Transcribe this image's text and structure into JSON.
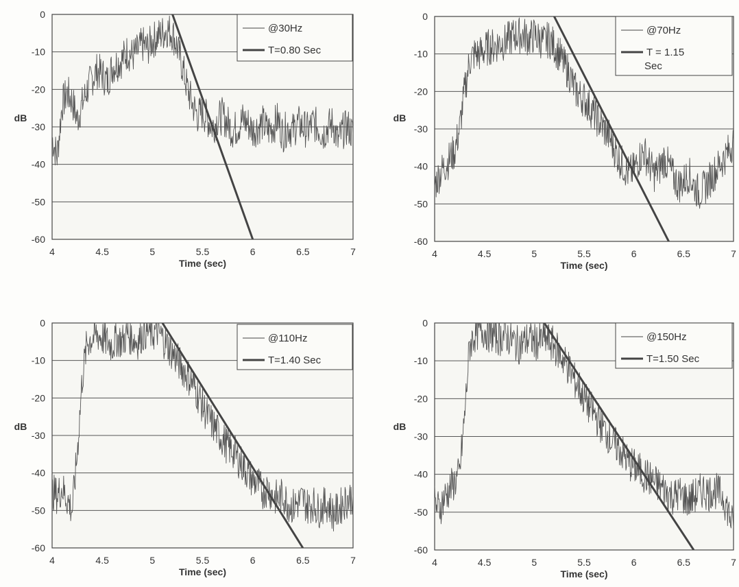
{
  "chart_data": [
    {
      "type": "line",
      "title": "",
      "xlabel": "Time (sec)",
      "ylabel": "dB",
      "xlim": [
        4,
        7
      ],
      "ylim": [
        -60,
        0
      ],
      "xticks": [
        "4",
        "4.5",
        "5",
        "5.5",
        "6",
        "6.5",
        "7"
      ],
      "yticks": [
        "0",
        "-10",
        "-20",
        "-30",
        "-40",
        "-50",
        "-60"
      ],
      "grid": "horizontal",
      "legend_position": "top-right",
      "series": [
        {
          "name": "@30Hz",
          "style": "thin",
          "points": [
            [
              4.0,
              -33
            ],
            [
              4.05,
              -38
            ],
            [
              4.1,
              -24
            ],
            [
              4.15,
              -21
            ],
            [
              4.2,
              -23
            ],
            [
              4.25,
              -28
            ],
            [
              4.3,
              -24
            ],
            [
              4.35,
              -20
            ],
            [
              4.4,
              -17
            ],
            [
              4.45,
              -15
            ],
            [
              4.5,
              -16
            ],
            [
              4.55,
              -18
            ],
            [
              4.6,
              -14
            ],
            [
              4.65,
              -13
            ],
            [
              4.7,
              -12
            ],
            [
              4.75,
              -10
            ],
            [
              4.8,
              -11
            ],
            [
              4.85,
              -10
            ],
            [
              4.9,
              -8
            ],
            [
              4.95,
              -9
            ],
            [
              5.0,
              -7
            ],
            [
              5.05,
              -6
            ],
            [
              5.1,
              -5
            ],
            [
              5.15,
              -4
            ],
            [
              5.2,
              -5
            ],
            [
              5.25,
              -9
            ],
            [
              5.3,
              -14
            ],
            [
              5.35,
              -20
            ],
            [
              5.4,
              -24
            ],
            [
              5.45,
              -27
            ],
            [
              5.5,
              -26
            ],
            [
              5.55,
              -28
            ],
            [
              5.6,
              -30
            ],
            [
              5.65,
              -28
            ],
            [
              5.7,
              -27
            ],
            [
              5.75,
              -29
            ],
            [
              5.8,
              -31
            ],
            [
              5.85,
              -30
            ],
            [
              5.9,
              -28
            ],
            [
              5.95,
              -29
            ],
            [
              6.0,
              -31
            ],
            [
              6.05,
              -30
            ],
            [
              6.1,
              -29
            ],
            [
              6.15,
              -31
            ],
            [
              6.2,
              -30
            ],
            [
              6.25,
              -28
            ],
            [
              6.3,
              -32
            ],
            [
              6.35,
              -30
            ],
            [
              6.4,
              -31
            ],
            [
              6.45,
              -29
            ],
            [
              6.5,
              -30
            ],
            [
              6.55,
              -31
            ],
            [
              6.6,
              -29
            ],
            [
              6.65,
              -30
            ],
            [
              6.7,
              -32
            ],
            [
              6.75,
              -30
            ],
            [
              6.8,
              -29
            ],
            [
              6.85,
              -34
            ],
            [
              6.9,
              -31
            ],
            [
              6.95,
              -30
            ],
            [
              7.0,
              -32
            ]
          ]
        },
        {
          "name": "T=0.80 Sec",
          "style": "thick",
          "points": [
            [
              5.2,
              0
            ],
            [
              6.0,
              -60
            ]
          ]
        }
      ]
    },
    {
      "type": "line",
      "title": "",
      "xlabel": "Time (sec)",
      "ylabel": "dB",
      "xlim": [
        4,
        7
      ],
      "ylim": [
        -60,
        0
      ],
      "xticks": [
        "4",
        "4.5",
        "5",
        "5.5",
        "6",
        "6.5",
        "7"
      ],
      "yticks": [
        "0",
        "-10",
        "-20",
        "-30",
        "-40",
        "-50",
        "-60"
      ],
      "grid": "horizontal",
      "legend_position": "top-right",
      "series": [
        {
          "name": "@70Hz",
          "style": "thin",
          "points": [
            [
              4.0,
              -45
            ],
            [
              4.05,
              -42
            ],
            [
              4.1,
              -40
            ],
            [
              4.15,
              -38
            ],
            [
              4.2,
              -36
            ],
            [
              4.25,
              -30
            ],
            [
              4.3,
              -20
            ],
            [
              4.35,
              -12
            ],
            [
              4.4,
              -10
            ],
            [
              4.45,
              -10
            ],
            [
              4.5,
              -9
            ],
            [
              4.55,
              -8
            ],
            [
              4.6,
              -8
            ],
            [
              4.65,
              -7
            ],
            [
              4.7,
              -7
            ],
            [
              4.75,
              -6
            ],
            [
              4.8,
              -5
            ],
            [
              4.85,
              -5
            ],
            [
              4.9,
              -5
            ],
            [
              4.95,
              -6
            ],
            [
              5.0,
              -5
            ],
            [
              5.05,
              -6
            ],
            [
              5.1,
              -7
            ],
            [
              5.15,
              -6
            ],
            [
              5.2,
              -8
            ],
            [
              5.25,
              -10
            ],
            [
              5.3,
              -13
            ],
            [
              5.35,
              -15
            ],
            [
              5.4,
              -19
            ],
            [
              5.45,
              -21
            ],
            [
              5.5,
              -22
            ],
            [
              5.55,
              -24
            ],
            [
              5.6,
              -26
            ],
            [
              5.65,
              -28
            ],
            [
              5.7,
              -30
            ],
            [
              5.75,
              -32
            ],
            [
              5.8,
              -35
            ],
            [
              5.85,
              -38
            ],
            [
              5.9,
              -40
            ],
            [
              5.95,
              -42
            ],
            [
              6.0,
              -41
            ],
            [
              6.05,
              -38
            ],
            [
              6.1,
              -36
            ],
            [
              6.15,
              -39
            ],
            [
              6.2,
              -42
            ],
            [
              6.25,
              -41
            ],
            [
              6.3,
              -38
            ],
            [
              6.35,
              -40
            ],
            [
              6.4,
              -43
            ],
            [
              6.45,
              -45
            ],
            [
              6.5,
              -44
            ],
            [
              6.55,
              -42
            ],
            [
              6.6,
              -45
            ],
            [
              6.65,
              -47
            ],
            [
              6.7,
              -46
            ],
            [
              6.75,
              -44
            ],
            [
              6.8,
              -42
            ],
            [
              6.85,
              -40
            ],
            [
              6.9,
              -38
            ],
            [
              6.95,
              -36
            ],
            [
              7.0,
              -33
            ]
          ]
        },
        {
          "name": "T = 1.15 Sec",
          "style": "thick",
          "points": [
            [
              5.2,
              0
            ],
            [
              6.35,
              -60
            ]
          ]
        }
      ]
    },
    {
      "type": "line",
      "title": "",
      "xlabel": "Time (sec)",
      "ylabel": "dB",
      "xlim": [
        4,
        7
      ],
      "ylim": [
        -60,
        0
      ],
      "xticks": [
        "4",
        "4.5",
        "5",
        "5.5",
        "6",
        "6.5",
        "7"
      ],
      "yticks": [
        "0",
        "-10",
        "-20",
        "-30",
        "-40",
        "-50",
        "-60"
      ],
      "grid": "horizontal",
      "legend_position": "top-right",
      "series": [
        {
          "name": "@110Hz",
          "style": "thin",
          "points": [
            [
              4.0,
              -45
            ],
            [
              4.05,
              -46
            ],
            [
              4.1,
              -44
            ],
            [
              4.15,
              -47
            ],
            [
              4.2,
              -50
            ],
            [
              4.25,
              -35
            ],
            [
              4.3,
              -15
            ],
            [
              4.35,
              -5
            ],
            [
              4.4,
              -4
            ],
            [
              4.45,
              -3
            ],
            [
              4.5,
              -4
            ],
            [
              4.55,
              -5
            ],
            [
              4.6,
              -6
            ],
            [
              4.65,
              -4
            ],
            [
              4.7,
              -5
            ],
            [
              4.75,
              -3
            ],
            [
              4.8,
              -4
            ],
            [
              4.85,
              -5
            ],
            [
              4.9,
              -3
            ],
            [
              4.95,
              -2
            ],
            [
              5.0,
              -3
            ],
            [
              5.05,
              -2
            ],
            [
              5.1,
              -4
            ],
            [
              5.15,
              -6
            ],
            [
              5.2,
              -8
            ],
            [
              5.25,
              -10
            ],
            [
              5.3,
              -12
            ],
            [
              5.35,
              -14
            ],
            [
              5.4,
              -16
            ],
            [
              5.45,
              -19
            ],
            [
              5.5,
              -22
            ],
            [
              5.55,
              -25
            ],
            [
              5.6,
              -27
            ],
            [
              5.65,
              -29
            ],
            [
              5.7,
              -31
            ],
            [
              5.75,
              -33
            ],
            [
              5.8,
              -34
            ],
            [
              5.85,
              -36
            ],
            [
              5.9,
              -38
            ],
            [
              5.95,
              -40
            ],
            [
              6.0,
              -42
            ],
            [
              6.05,
              -43
            ],
            [
              6.1,
              -45
            ],
            [
              6.15,
              -44
            ],
            [
              6.2,
              -46
            ],
            [
              6.25,
              -47
            ],
            [
              6.3,
              -46
            ],
            [
              6.35,
              -48
            ],
            [
              6.4,
              -49
            ],
            [
              6.45,
              -48
            ],
            [
              6.5,
              -47
            ],
            [
              6.55,
              -49
            ],
            [
              6.6,
              -48
            ],
            [
              6.65,
              -50
            ],
            [
              6.7,
              -49
            ],
            [
              6.75,
              -48
            ],
            [
              6.8,
              -51
            ],
            [
              6.85,
              -50
            ],
            [
              6.9,
              -48
            ],
            [
              6.95,
              -47
            ],
            [
              7.0,
              -46
            ]
          ]
        },
        {
          "name": "T=1.40 Sec",
          "style": "thick",
          "points": [
            [
              5.1,
              0
            ],
            [
              6.5,
              -60
            ]
          ]
        }
      ]
    },
    {
      "type": "line",
      "title": "",
      "xlabel": "Time (sec)",
      "ylabel": "dB",
      "xlim": [
        4,
        7
      ],
      "ylim": [
        -60,
        0
      ],
      "xticks": [
        "4",
        "4.5",
        "5",
        "5.5",
        "6",
        "6.5",
        "7"
      ],
      "yticks": [
        "0",
        "-10",
        "-20",
        "-30",
        "-40",
        "-50",
        "-60"
      ],
      "grid": "horizontal",
      "legend_position": "top-right",
      "series": [
        {
          "name": "@150Hz",
          "style": "thin",
          "points": [
            [
              4.0,
              -48
            ],
            [
              4.05,
              -49
            ],
            [
              4.1,
              -46
            ],
            [
              4.15,
              -44
            ],
            [
              4.2,
              -42
            ],
            [
              4.25,
              -40
            ],
            [
              4.3,
              -25
            ],
            [
              4.35,
              -6
            ],
            [
              4.4,
              -3
            ],
            [
              4.45,
              -2
            ],
            [
              4.5,
              -2
            ],
            [
              4.55,
              -3
            ],
            [
              4.6,
              -3
            ],
            [
              4.65,
              -4
            ],
            [
              4.7,
              -3
            ],
            [
              4.75,
              -4
            ],
            [
              4.8,
              -5
            ],
            [
              4.85,
              -6
            ],
            [
              4.9,
              -5
            ],
            [
              4.95,
              -4
            ],
            [
              5.0,
              -5
            ],
            [
              5.05,
              -5
            ],
            [
              5.1,
              -4
            ],
            [
              5.15,
              -5
            ],
            [
              5.2,
              -6
            ],
            [
              5.25,
              -8
            ],
            [
              5.3,
              -10
            ],
            [
              5.35,
              -12
            ],
            [
              5.4,
              -15
            ],
            [
              5.45,
              -17
            ],
            [
              5.5,
              -20
            ],
            [
              5.55,
              -22
            ],
            [
              5.6,
              -24
            ],
            [
              5.65,
              -26
            ],
            [
              5.7,
              -28
            ],
            [
              5.75,
              -30
            ],
            [
              5.8,
              -32
            ],
            [
              5.85,
              -33
            ],
            [
              5.9,
              -35
            ],
            [
              5.95,
              -37
            ],
            [
              6.0,
              -38
            ],
            [
              6.05,
              -39
            ],
            [
              6.1,
              -40
            ],
            [
              6.15,
              -41
            ],
            [
              6.2,
              -42
            ],
            [
              6.25,
              -43
            ],
            [
              6.3,
              -44
            ],
            [
              6.35,
              -45
            ],
            [
              6.4,
              -46
            ],
            [
              6.45,
              -45
            ],
            [
              6.5,
              -46
            ],
            [
              6.55,
              -47
            ],
            [
              6.6,
              -46
            ],
            [
              6.65,
              -45
            ],
            [
              6.7,
              -44
            ],
            [
              6.75,
              -45
            ],
            [
              6.8,
              -44
            ],
            [
              6.85,
              -45
            ],
            [
              6.9,
              -46
            ],
            [
              6.95,
              -50
            ],
            [
              7.0,
              -54
            ]
          ]
        },
        {
          "name": "T=1.50 Sec",
          "style": "thick",
          "points": [
            [
              5.1,
              0
            ],
            [
              6.6,
              -60
            ]
          ]
        }
      ]
    }
  ]
}
